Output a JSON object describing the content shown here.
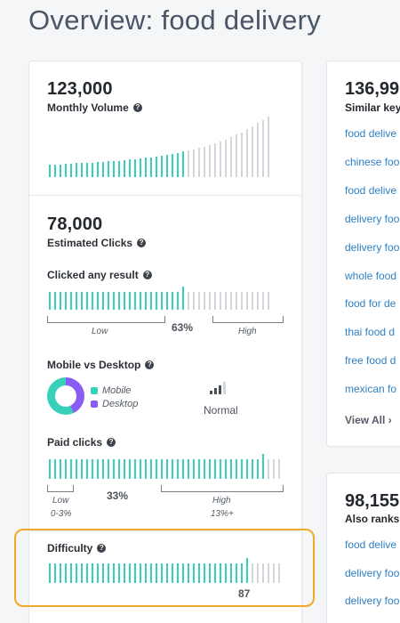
{
  "title": "Overview: food delivery",
  "colors": {
    "accent": "#37d1b9",
    "inactive": "#d3d6db",
    "purple": "#8a5cf6",
    "link": "#2f80c4",
    "highlight": "#f2a92c"
  },
  "volume": {
    "value": "123,000",
    "label": "Monthly Volume",
    "trend_bars": [
      0.2,
      0.21,
      0.21,
      0.22,
      0.22,
      0.23,
      0.23,
      0.24,
      0.24,
      0.25,
      0.25,
      0.26,
      0.27,
      0.27,
      0.28,
      0.29,
      0.3,
      0.31,
      0.32,
      0.33,
      0.34,
      0.35,
      0.37,
      0.38,
      0.4,
      0.42,
      0.44,
      0.46,
      0.48,
      0.5,
      0.53,
      0.56,
      0.59,
      0.62,
      0.66,
      0.7,
      0.74,
      0.79,
      0.84,
      0.89,
      0.94,
      1.0
    ],
    "active_count": 26
  },
  "clicks": {
    "value": "78,000",
    "label": "Estimated Clicks",
    "clicked_any": {
      "label": "Clicked any result",
      "percent": 63,
      "percent_text": "63%",
      "low": "Low",
      "high": "High"
    },
    "mobile_desktop": {
      "label": "Mobile vs Desktop",
      "mobile": "Mobile",
      "desktop": "Desktop",
      "status": "Normal"
    },
    "paid": {
      "label": "Paid clicks",
      "percent": 33,
      "percent_text": "33%",
      "low": "Low",
      "low_range": "0-3%",
      "high": "High",
      "high_range": "13%+"
    }
  },
  "difficulty": {
    "label": "Difficulty",
    "value": 87,
    "value_text": "87"
  },
  "similar": {
    "count": "136,99",
    "label": "Similar key",
    "keywords": [
      "food delive",
      "chinese foo",
      "food delive",
      "delivery foo",
      "delivery foo",
      "whole food",
      "food for de",
      "thai food d",
      "free food d",
      "mexican fo"
    ],
    "view_all": "View All"
  },
  "also_ranks": {
    "count": "98,155",
    "label": "Also ranks",
    "keywords": [
      "food delive",
      "delivery foo",
      "delivery foo"
    ]
  }
}
